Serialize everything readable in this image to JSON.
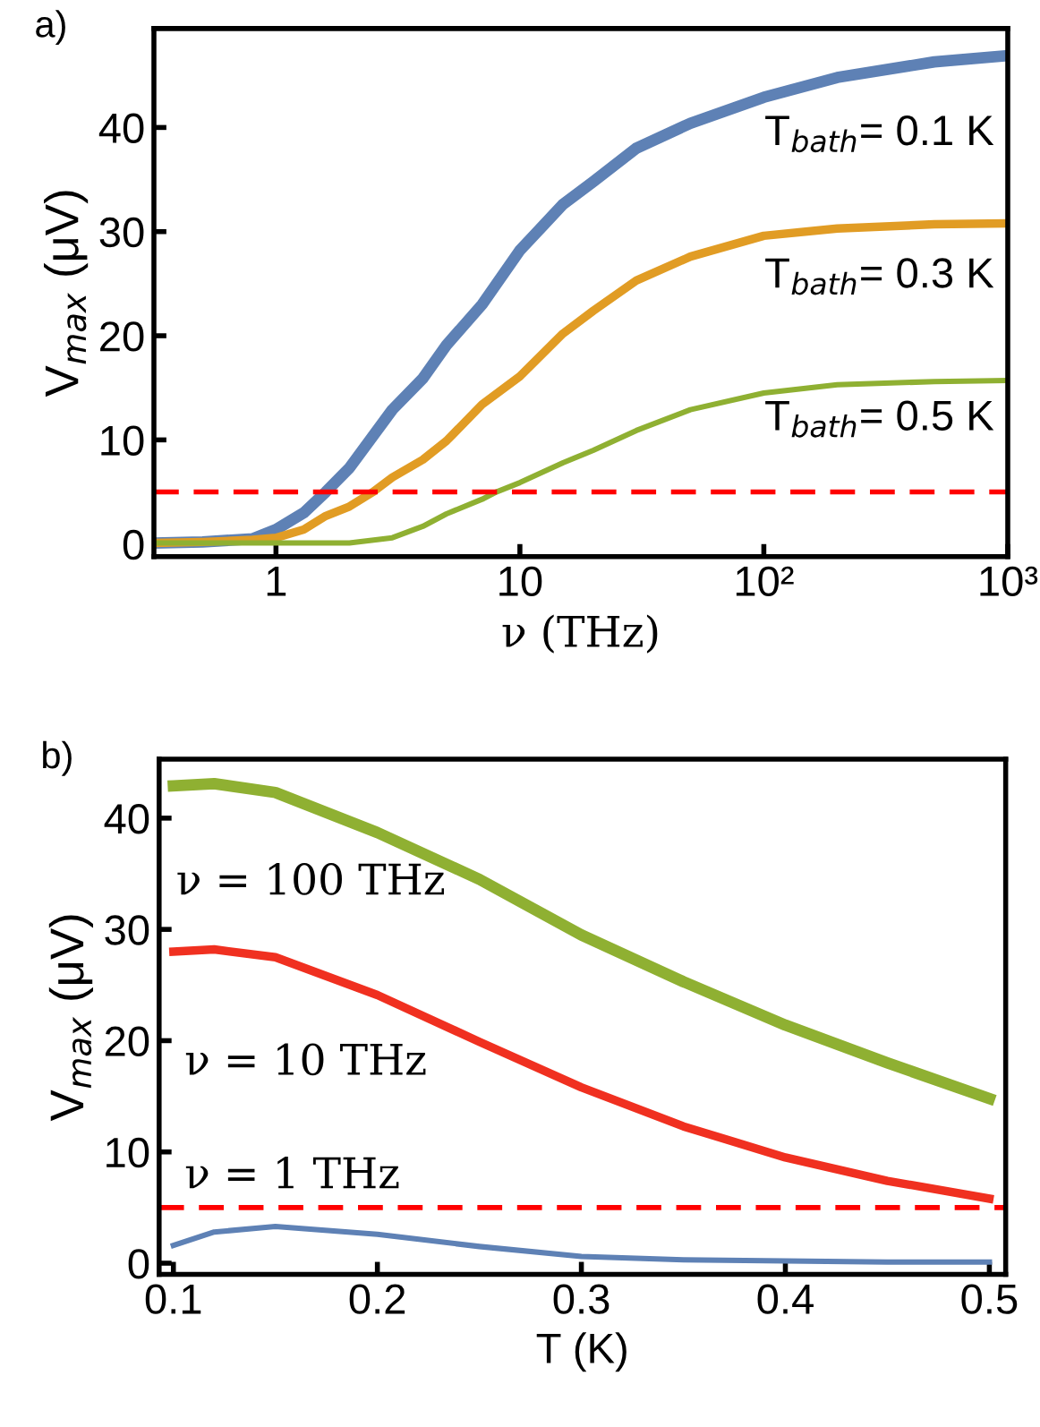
{
  "chart_data": [
    {
      "type": "line",
      "title": "a)",
      "xlabel": "ν (THz)",
      "ylabel": "V$_{max}$ (μV)",
      "log": "x",
      "xlim": [
        0.316,
        1000
      ],
      "ylim": [
        -1.2,
        49.5
      ],
      "xticks": [
        1,
        10,
        {
          "value": 100,
          "label": "10²"
        },
        {
          "value": 1000,
          "label": "10³"
        }
      ],
      "yticks": [
        0,
        10,
        20,
        30,
        40
      ],
      "grid": false,
      "legend": false,
      "marker": "none",
      "line_style": "solid",
      "series": [
        {
          "color": "#5e81b5",
          "x": [
            0.316,
            0.5,
            0.8,
            1,
            1.3,
            1.6,
            2,
            3,
            4,
            5,
            7,
            10,
            15,
            20,
            30,
            50,
            100,
            200,
            500,
            1000
          ],
          "values": [
            0.1,
            0.2,
            0.5,
            1.4,
            3.0,
            5.0,
            7.3,
            12.9,
            15.9,
            19.1,
            23.0,
            28.2,
            32.6,
            34.8,
            38.0,
            40.4,
            42.9,
            44.8,
            46.3,
            46.9
          ]
        },
        {
          "color": "#e19c24",
          "x": [
            0.316,
            0.5,
            0.8,
            1,
            1.3,
            1.6,
            2,
            2.5,
            3,
            4,
            5,
            7,
            10,
            15,
            20,
            30,
            50,
            100,
            200,
            500,
            1000
          ],
          "values": [
            0.1,
            0.2,
            0.4,
            0.6,
            1.4,
            2.7,
            3.6,
            5.0,
            6.4,
            8.1,
            9.9,
            13.4,
            16.1,
            20.2,
            22.4,
            25.3,
            27.6,
            29.6,
            30.3,
            30.7,
            30.8
          ]
        },
        {
          "color": "#8fb032",
          "x": [
            0.316,
            1,
            2,
            3,
            4,
            5,
            7,
            8,
            10,
            15,
            20,
            30,
            50,
            100,
            200,
            500,
            1000
          ],
          "values": [
            0.1,
            0.1,
            0.1,
            0.6,
            1.7,
            2.9,
            4.3,
            5.0,
            5.9,
            7.8,
            9.0,
            10.9,
            12.9,
            14.5,
            15.3,
            15.6,
            15.7
          ]
        }
      ],
      "ref_lines": [
        {
          "axis": "y",
          "value": 5,
          "color": "#ff0000",
          "line_style": "dashed"
        }
      ],
      "annotations": [
        "T$_{bath}$= 0.1 K",
        "T$_{bath}$= 0.3 K",
        "T$_{bath}$= 0.5 K"
      ]
    },
    {
      "type": "line",
      "title": "b)",
      "xlabel": "T (K)",
      "ylabel": "V$_{max}$ (μV)",
      "xlim": [
        0.093,
        0.508
      ],
      "ylim": [
        -1.0,
        45.3
      ],
      "xticks": [
        0.1,
        0.2,
        0.3,
        0.4,
        0.5
      ],
      "yticks": [
        0,
        10,
        20,
        30,
        40
      ],
      "grid": false,
      "legend": false,
      "marker": "none",
      "line_style": "solid",
      "series": [
        {
          "color": "#8fb032",
          "x": [
            0.1,
            0.12,
            0.15,
            0.2,
            0.25,
            0.3,
            0.35,
            0.4,
            0.45,
            0.5
          ],
          "values": [
            42.9,
            43.1,
            42.3,
            38.7,
            34.5,
            29.5,
            25.3,
            21.4,
            18.0,
            14.8
          ]
        },
        {
          "color": "#f03020",
          "x": [
            0.1,
            0.12,
            0.15,
            0.2,
            0.25,
            0.3,
            0.35,
            0.4,
            0.45,
            0.5
          ],
          "values": [
            28.0,
            28.2,
            27.5,
            24.1,
            19.9,
            15.8,
            12.3,
            9.5,
            7.4,
            5.8
          ]
        },
        {
          "color": "#5e81b5",
          "x": [
            0.1,
            0.12,
            0.15,
            0.2,
            0.25,
            0.3,
            0.35,
            0.4,
            0.45,
            0.5
          ],
          "values": [
            1.6,
            2.8,
            3.3,
            2.6,
            1.5,
            0.6,
            0.3,
            0.2,
            0.1,
            0.1
          ]
        }
      ],
      "ref_lines": [
        {
          "axis": "y",
          "value": 5,
          "color": "#ff0000",
          "line_style": "dashed"
        }
      ],
      "annotations": [
        "ν = 100 THz",
        "ν = 10 THz",
        "ν = 1 THz"
      ]
    }
  ]
}
